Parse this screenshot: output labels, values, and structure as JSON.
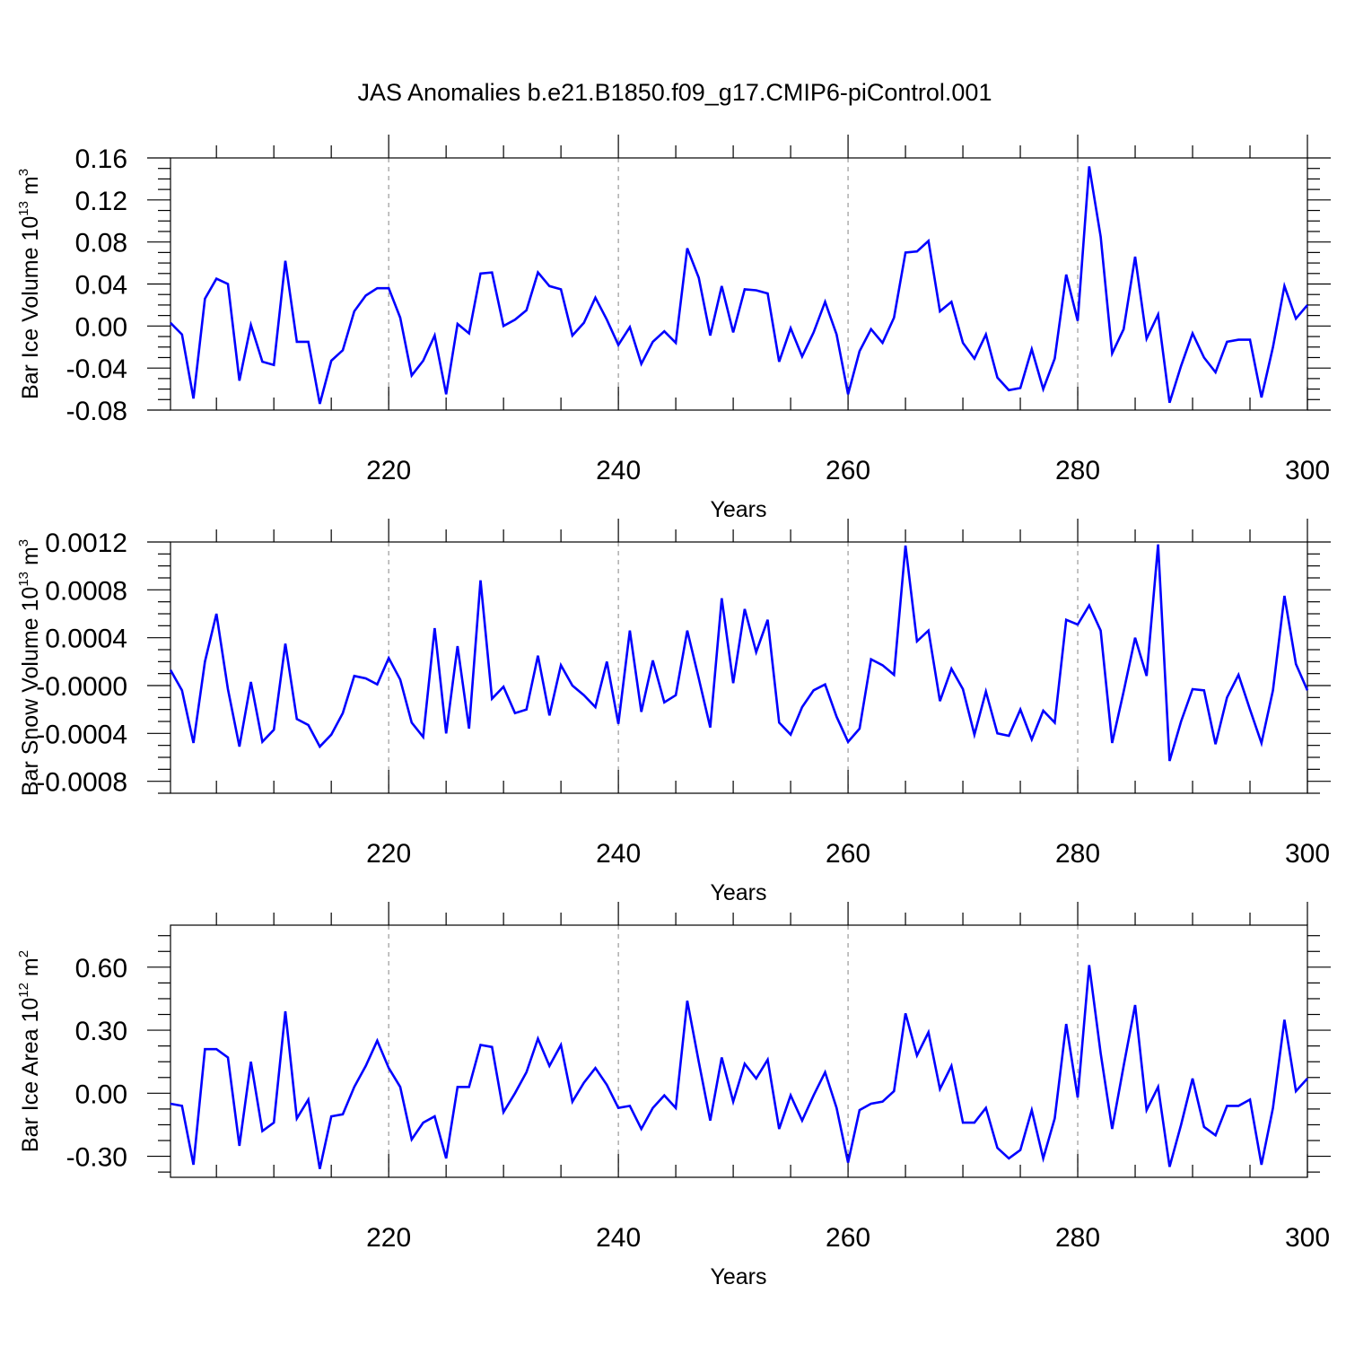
{
  "figure": {
    "title": "JAS Anomalies b.e21.B1850.f09_g17.CMIP6-piControl.001"
  },
  "colors": {
    "line": "#0000ff",
    "grid": "#999999"
  },
  "chart_data": [
    {
      "type": "line",
      "name": "panel-ice-volume",
      "ylabel": {
        "text": "Bar Ice Volume 10",
        "sup1": "13",
        "unit": " m",
        "sup2": "3"
      },
      "xlabel": "Years",
      "xlim": [
        201,
        300
      ],
      "ylim": [
        -0.08,
        0.16
      ],
      "grid": "vertical dashed at labeled x ticks",
      "xticks": [
        220,
        240,
        260,
        280,
        300
      ],
      "xtick_labels": [
        "220",
        "240",
        "260",
        "280",
        "300"
      ],
      "yticks": [
        0.16,
        0.12,
        0.08,
        0.04,
        0.0,
        -0.04,
        -0.08
      ],
      "ytick_labels": [
        "0.16",
        "0.12",
        "0.08",
        "0.04",
        "0.00",
        "-0.04",
        "-0.08"
      ],
      "x_start": 201,
      "values": [
        0.003,
        -0.008,
        -0.069,
        0.026,
        0.045,
        0.04,
        -0.052,
        0.001,
        -0.034,
        -0.037,
        0.062,
        -0.015,
        -0.015,
        -0.074,
        -0.033,
        -0.023,
        0.014,
        0.029,
        0.036,
        0.036,
        0.008,
        -0.047,
        -0.033,
        -0.009,
        -0.065,
        0.002,
        -0.007,
        0.05,
        0.051,
        0.0,
        0.006,
        0.015,
        0.051,
        0.038,
        0.035,
        -0.009,
        0.003,
        0.027,
        0.006,
        -0.018,
        -0.001,
        -0.036,
        -0.015,
        -0.005,
        -0.016,
        0.074,
        0.046,
        -0.009,
        0.038,
        -0.006,
        0.035,
        0.034,
        0.031,
        -0.034,
        -0.002,
        -0.029,
        -0.006,
        0.023,
        -0.008,
        -0.065,
        -0.024,
        -0.003,
        -0.016,
        0.008,
        0.07,
        0.071,
        0.081,
        0.014,
        0.023,
        -0.016,
        -0.031,
        -0.008,
        -0.049,
        -0.061,
        -0.059,
        -0.022,
        -0.06,
        -0.031,
        0.049,
        0.005,
        0.152,
        0.085,
        -0.026,
        -0.003,
        0.066,
        -0.012,
        0.011,
        -0.073,
        -0.038,
        -0.007,
        -0.03,
        -0.044,
        -0.015,
        -0.013,
        -0.013,
        -0.068,
        -0.02,
        0.038,
        0.007,
        0.02
      ]
    },
    {
      "type": "line",
      "name": "panel-snow-volume",
      "ylabel": {
        "text": "Bar Snow Volume 10",
        "sup1": "13",
        "unit": " m",
        "sup2": "3"
      },
      "xlabel": "Years",
      "xlim": [
        201,
        300
      ],
      "ylim": [
        -0.0009,
        0.0012
      ],
      "grid": "vertical dashed at labeled x ticks",
      "xticks": [
        220,
        240,
        260,
        280,
        300
      ],
      "xtick_labels": [
        "220",
        "240",
        "260",
        "280",
        "300"
      ],
      "yticks": [
        0.0012,
        0.0008,
        0.0004,
        0.0,
        -0.0004,
        -0.0008
      ],
      "ytick_labels": [
        "0.0012",
        "0.0008",
        "0.0004",
        "-0.0000",
        "-0.0004",
        "-0.0008"
      ],
      "x_start": 201,
      "values": [
        0.00013,
        -4e-05,
        -0.00048,
        0.0002,
        0.0006,
        -3e-05,
        -0.00051,
        3e-05,
        -0.00047,
        -0.00037,
        0.00035,
        -0.00028,
        -0.00033,
        -0.00051,
        -0.00041,
        -0.00023,
        8e-05,
        6e-05,
        1e-05,
        0.00023,
        5e-05,
        -0.00031,
        -0.00043,
        0.00048,
        -0.0004,
        0.00033,
        -0.00036,
        0.00088,
        -0.00011,
        -1e-05,
        -0.00023,
        -0.0002,
        0.00025,
        -0.00025,
        0.00017,
        0.0,
        -8e-05,
        -0.00018,
        0.0002,
        -0.00032,
        0.00046,
        -0.00022,
        0.00021,
        -0.00014,
        -8e-05,
        0.00046,
        6e-05,
        -0.00035,
        0.00073,
        2e-05,
        0.00064,
        0.00028,
        0.00055,
        -0.00031,
        -0.00041,
        -0.00018,
        -4e-05,
        1e-05,
        -0.00026,
        -0.00047,
        -0.00036,
        0.00022,
        0.00017,
        9e-05,
        0.00117,
        0.00037,
        0.00046,
        -0.00013,
        0.00014,
        -3e-05,
        -0.00041,
        -5e-05,
        -0.0004,
        -0.00042,
        -0.0002,
        -0.00045,
        -0.00021,
        -0.00031,
        0.00055,
        0.00051,
        0.00067,
        0.00046,
        -0.00048,
        -5e-05,
        0.0004,
        8e-05,
        0.00118,
        -0.00063,
        -0.0003,
        -3e-05,
        -4e-05,
        -0.00049,
        -0.0001,
        9e-05,
        -0.0002,
        -0.00048,
        -4e-05,
        0.00075,
        0.00018,
        -4e-05
      ]
    },
    {
      "type": "line",
      "name": "panel-ice-area",
      "ylabel": {
        "text": "Bar Ice Area 10",
        "sup1": "12",
        "unit": " m",
        "sup2": "2"
      },
      "xlabel": "Years",
      "xlim": [
        201,
        300
      ],
      "ylim": [
        -0.4,
        0.8
      ],
      "grid": "vertical dashed at labeled x ticks",
      "xticks": [
        220,
        240,
        260,
        280,
        300
      ],
      "xtick_labels": [
        "220",
        "240",
        "260",
        "280",
        "300"
      ],
      "yticks": [
        0.6,
        0.3,
        0.0,
        -0.3
      ],
      "ytick_labels": [
        "0.60",
        "0.30",
        "0.00",
        "-0.30"
      ],
      "x_start": 201,
      "values": [
        -0.05,
        -0.06,
        -0.34,
        0.21,
        0.21,
        0.17,
        -0.25,
        0.15,
        -0.18,
        -0.14,
        0.39,
        -0.12,
        -0.03,
        -0.36,
        -0.11,
        -0.1,
        0.03,
        0.13,
        0.25,
        0.12,
        0.03,
        -0.22,
        -0.14,
        -0.11,
        -0.31,
        0.03,
        0.03,
        0.23,
        0.22,
        -0.09,
        0.0,
        0.1,
        0.26,
        0.13,
        0.23,
        -0.04,
        0.05,
        0.12,
        0.04,
        -0.07,
        -0.06,
        -0.17,
        -0.07,
        -0.01,
        -0.07,
        0.44,
        0.15,
        -0.13,
        0.17,
        -0.04,
        0.14,
        0.07,
        0.16,
        -0.17,
        -0.01,
        -0.13,
        -0.01,
        0.1,
        -0.07,
        -0.33,
        -0.08,
        -0.05,
        -0.04,
        0.01,
        0.38,
        0.18,
        0.29,
        0.02,
        0.13,
        -0.14,
        -0.14,
        -0.07,
        -0.26,
        -0.31,
        -0.27,
        -0.08,
        -0.31,
        -0.12,
        0.33,
        -0.02,
        0.61,
        0.19,
        -0.17,
        0.13,
        0.42,
        -0.08,
        0.03,
        -0.35,
        -0.15,
        0.07,
        -0.16,
        -0.2,
        -0.06,
        -0.06,
        -0.03,
        -0.34,
        -0.07,
        0.35,
        0.01,
        0.07
      ]
    }
  ]
}
